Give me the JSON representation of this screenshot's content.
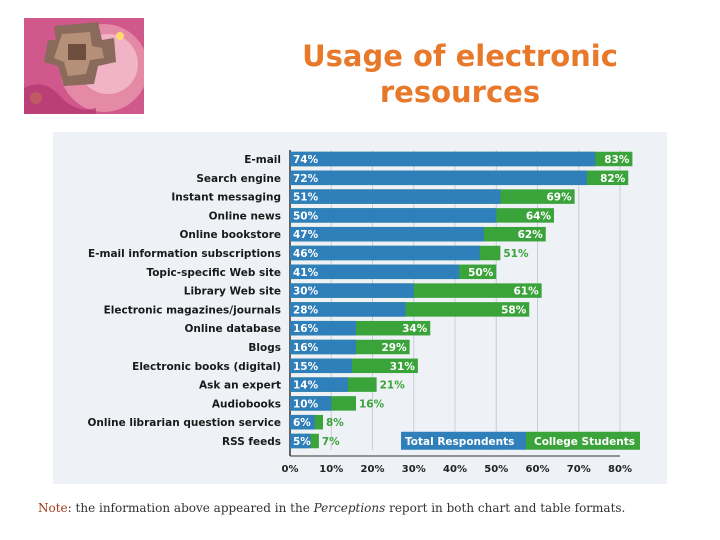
{
  "slide_title": "Usage of electronic resources",
  "note": {
    "label": "Note",
    "text_before": ": the information above appeared in the ",
    "italic": "Perceptions",
    "text_after": " report in both chart and table formats."
  },
  "colors": {
    "title": "#e8782a",
    "total_respondents": "#2e7fba",
    "college_students": "#3aa33a",
    "panel_background": "#eef1f6",
    "value_label": "#ffffff",
    "college_value_label": "#3aa33a"
  },
  "chart_data": {
    "type": "bar",
    "orientation": "horizontal",
    "categories": [
      "E-mail",
      "Search engine",
      "Instant messaging",
      "Online news",
      "Online bookstore",
      "E-mail information subscriptions",
      "Topic-specific Web site",
      "Library Web site",
      "Electronic magazines/journals",
      "Online database",
      "Blogs",
      "Electronic books (digital)",
      "Ask an expert",
      "Audiobooks",
      "Online librarian question service",
      "RSS feeds"
    ],
    "series": [
      {
        "name": "Total Respondents",
        "values": [
          74,
          72,
          51,
          50,
          47,
          46,
          41,
          30,
          28,
          16,
          16,
          15,
          14,
          10,
          6,
          5
        ],
        "labels": [
          "74%",
          "72%",
          "51%",
          "50%",
          "47%",
          "46%",
          "41%",
          "30%",
          "28%",
          "16%",
          "16%",
          "15%",
          "14%",
          "10%",
          "6%",
          "5%"
        ]
      },
      {
        "name": "College Students",
        "values": [
          83,
          82,
          69,
          64,
          62,
          51,
          50,
          61,
          58,
          34,
          29,
          31,
          21,
          16,
          8,
          7
        ],
        "labels": [
          "83%",
          "82%",
          "69%",
          "64%",
          "62%",
          "51%",
          "50%",
          "61%",
          "58%",
          "34%",
          "29%",
          "31%",
          "21%",
          "16%",
          "8%",
          "7%"
        ]
      }
    ],
    "xlim": [
      0,
      80
    ],
    "x_ticks": [
      0,
      10,
      20,
      30,
      40,
      50,
      60,
      70,
      80
    ],
    "x_tick_labels": [
      "0%",
      "10%",
      "20%",
      "30%",
      "40%",
      "50%",
      "60%",
      "70%",
      "80%"
    ],
    "grid": true,
    "legend_position": "bottom-right"
  }
}
